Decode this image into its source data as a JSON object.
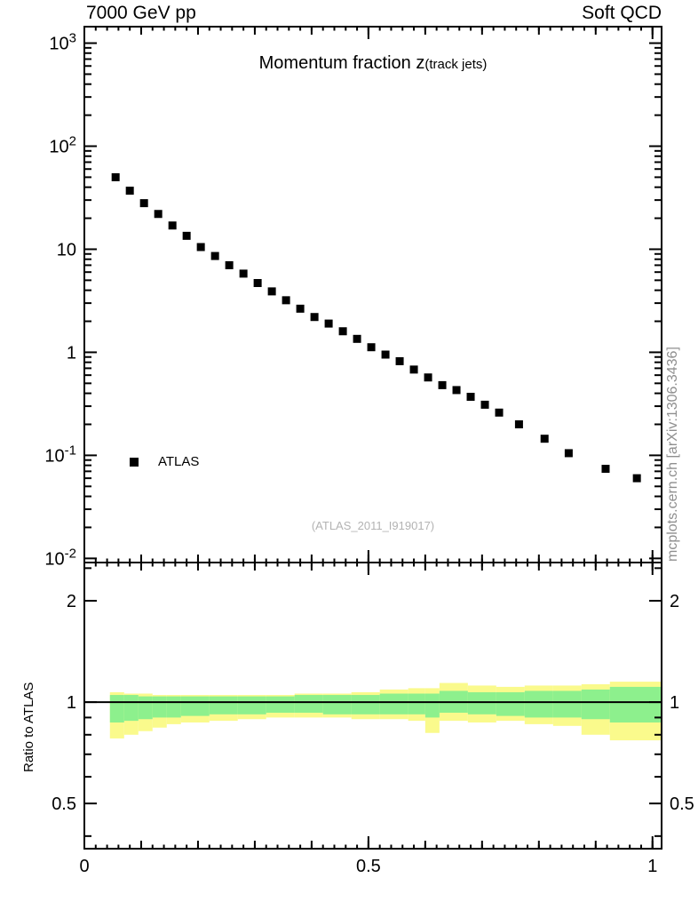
{
  "header": {
    "left": "7000 GeV pp",
    "right": "Soft QCD"
  },
  "watermark": "(ATLAS_2011_I919017)",
  "side_note": "mcplots.cern.ch [arXiv:1306.3436]",
  "chart_data": {
    "type": "scatter",
    "title": "Momentum fraction z",
    "title_suffix": "(track jets)",
    "x_range": [
      0,
      1.016
    ],
    "x_ticks": [
      {
        "v": 0,
        "label": "0"
      },
      {
        "v": 0.5,
        "label": "0.5"
      },
      {
        "v": 1,
        "label": "1"
      }
    ],
    "legend": [
      {
        "label": "ATLAS",
        "marker": "square",
        "color": "#000000"
      }
    ],
    "top_panel": {
      "y_scale": "log",
      "y_range": [
        0.00912,
        1445
      ],
      "y_ticks": [
        {
          "v": 1000,
          "base": "10",
          "exp": "3"
        },
        {
          "v": 100,
          "base": "10",
          "exp": "2"
        },
        {
          "v": 10,
          "base": "10",
          "exp": ""
        },
        {
          "v": 1,
          "base": "1",
          "exp": ""
        },
        {
          "v": 0.1,
          "base": "10",
          "exp": "-1"
        },
        {
          "v": 0.01,
          "base": "10",
          "exp": "-2"
        }
      ],
      "series": [
        {
          "name": "ATLAS",
          "marker": "square",
          "color": "#000000",
          "points": [
            [
              0.055,
              50
            ],
            [
              0.08,
              37
            ],
            [
              0.105,
              28
            ],
            [
              0.13,
              22
            ],
            [
              0.155,
              17
            ],
            [
              0.18,
              13.5
            ],
            [
              0.205,
              10.5
            ],
            [
              0.23,
              8.6
            ],
            [
              0.255,
              7.0
            ],
            [
              0.28,
              5.8
            ],
            [
              0.305,
              4.7
            ],
            [
              0.33,
              3.9
            ],
            [
              0.355,
              3.2
            ],
            [
              0.38,
              2.65
            ],
            [
              0.405,
              2.2
            ],
            [
              0.43,
              1.9
            ],
            [
              0.455,
              1.6
            ],
            [
              0.48,
              1.35
            ],
            [
              0.505,
              1.12
            ],
            [
              0.53,
              0.95
            ],
            [
              0.555,
              0.82
            ],
            [
              0.58,
              0.68
            ],
            [
              0.605,
              0.57
            ],
            [
              0.63,
              0.48
            ],
            [
              0.655,
              0.43
            ],
            [
              0.68,
              0.37
            ],
            [
              0.705,
              0.31
            ],
            [
              0.73,
              0.26
            ],
            [
              0.765,
              0.2
            ],
            [
              0.81,
              0.145
            ],
            [
              0.8525,
              0.105
            ],
            [
              0.9175,
              0.074
            ],
            [
              0.9725,
              0.06
            ]
          ]
        }
      ]
    },
    "ratio_panel": {
      "ylabel": "Ratio to ATLAS",
      "y_scale": "log",
      "y_range": [
        0.367,
        2.598
      ],
      "y_ticks": [
        {
          "v": 0.5,
          "label": "0.5"
        },
        {
          "v": 1,
          "label": "1"
        },
        {
          "v": 2,
          "label": "2"
        }
      ],
      "y_minor_ticks": [
        0.4,
        0.6,
        0.7,
        0.8,
        0.9,
        2.5
      ],
      "reference_line": 1,
      "bands": [
        {
          "name": "data-uncertainty-yellow",
          "color": "#fafa8c",
          "bins": [
            [
              0.045,
              0.07,
              0.78,
              1.07
            ],
            [
              0.07,
              0.095,
              0.8,
              1.06
            ],
            [
              0.095,
              0.12,
              0.82,
              1.06
            ],
            [
              0.12,
              0.145,
              0.84,
              1.05
            ],
            [
              0.145,
              0.17,
              0.86,
              1.05
            ],
            [
              0.17,
              0.22,
              0.87,
              1.05
            ],
            [
              0.22,
              0.27,
              0.88,
              1.05
            ],
            [
              0.27,
              0.32,
              0.89,
              1.05
            ],
            [
              0.32,
              0.37,
              0.9,
              1.05
            ],
            [
              0.37,
              0.42,
              0.9,
              1.06
            ],
            [
              0.42,
              0.47,
              0.9,
              1.06
            ],
            [
              0.47,
              0.52,
              0.89,
              1.07
            ],
            [
              0.52,
              0.57,
              0.89,
              1.09
            ],
            [
              0.57,
              0.6,
              0.88,
              1.1
            ],
            [
              0.6,
              0.625,
              0.81,
              1.1
            ],
            [
              0.625,
              0.675,
              0.88,
              1.14
            ],
            [
              0.675,
              0.725,
              0.87,
              1.12
            ],
            [
              0.725,
              0.775,
              0.88,
              1.11
            ],
            [
              0.775,
              0.825,
              0.86,
              1.12
            ],
            [
              0.825,
              0.875,
              0.85,
              1.12
            ],
            [
              0.875,
              0.925,
              0.8,
              1.13
            ],
            [
              0.925,
              1.016,
              0.77,
              1.15
            ]
          ]
        },
        {
          "name": "mc-uncertainty-green",
          "color": "#8df08d",
          "bins": [
            [
              0.045,
              0.07,
              0.87,
              1.05
            ],
            [
              0.07,
              0.095,
              0.88,
              1.05
            ],
            [
              0.095,
              0.12,
              0.89,
              1.04
            ],
            [
              0.12,
              0.145,
              0.9,
              1.04
            ],
            [
              0.145,
              0.17,
              0.9,
              1.04
            ],
            [
              0.17,
              0.22,
              0.91,
              1.04
            ],
            [
              0.22,
              0.27,
              0.92,
              1.04
            ],
            [
              0.27,
              0.32,
              0.92,
              1.04
            ],
            [
              0.32,
              0.37,
              0.93,
              1.04
            ],
            [
              0.37,
              0.42,
              0.93,
              1.05
            ],
            [
              0.42,
              0.47,
              0.92,
              1.05
            ],
            [
              0.47,
              0.52,
              0.92,
              1.05
            ],
            [
              0.52,
              0.57,
              0.92,
              1.06
            ],
            [
              0.57,
              0.6,
              0.92,
              1.06
            ],
            [
              0.6,
              0.625,
              0.9,
              1.06
            ],
            [
              0.625,
              0.675,
              0.93,
              1.08
            ],
            [
              0.675,
              0.725,
              0.92,
              1.07
            ],
            [
              0.725,
              0.775,
              0.91,
              1.07
            ],
            [
              0.775,
              0.825,
              0.9,
              1.08
            ],
            [
              0.825,
              0.875,
              0.9,
              1.08
            ],
            [
              0.875,
              0.925,
              0.89,
              1.09
            ],
            [
              0.925,
              1.016,
              0.87,
              1.11
            ]
          ]
        }
      ]
    }
  }
}
